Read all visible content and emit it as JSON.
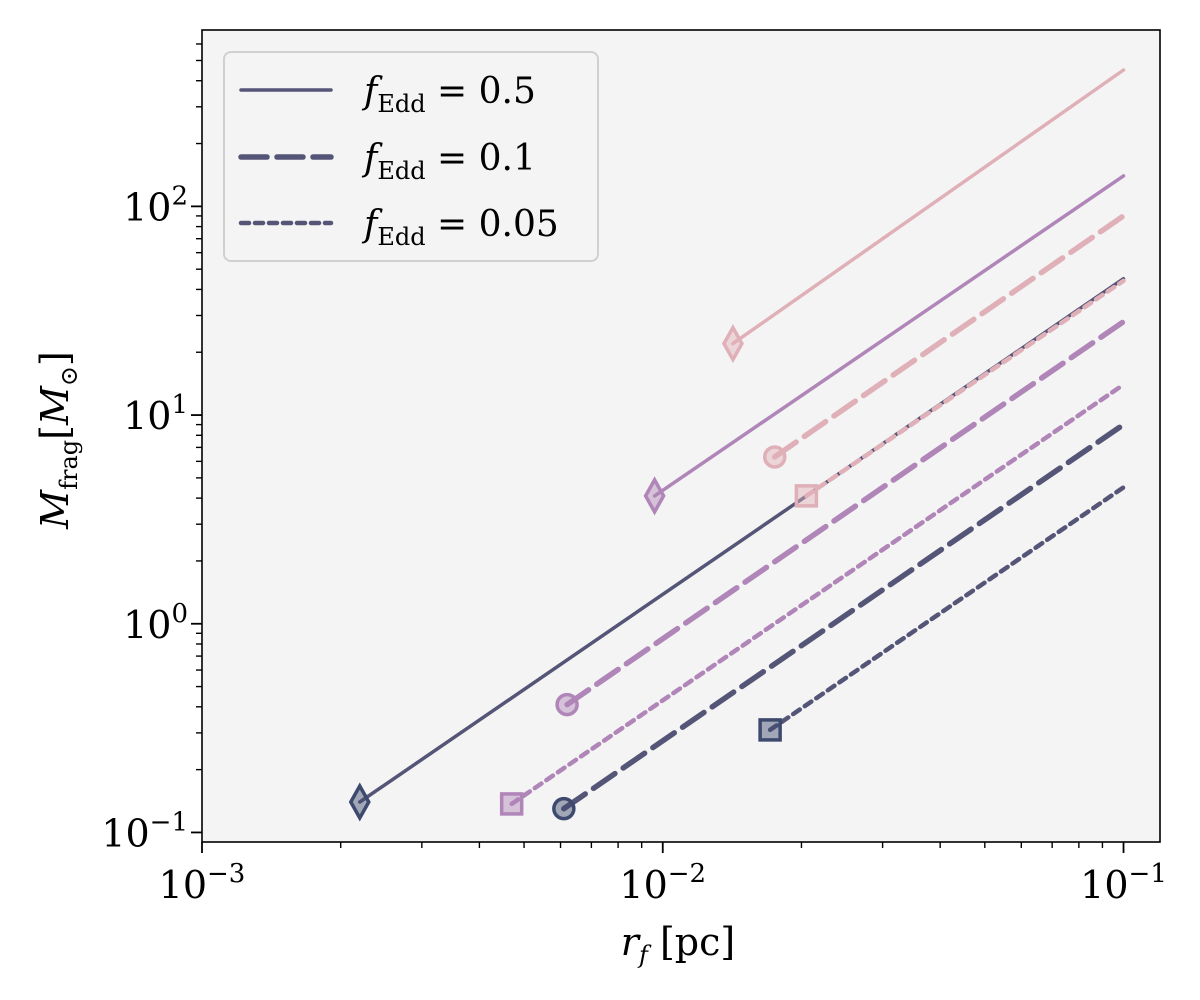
{
  "chart_data": {
    "type": "line",
    "xscale": "log",
    "yscale": "log",
    "xlim": [
      0.001,
      0.12
    ],
    "ylim": [
      0.09,
      700
    ],
    "xlabel": "r_f [pc]",
    "ylabel": "M_frag [M_⊙]",
    "xticks": [
      {
        "value": 0.001,
        "base": "10",
        "exp": "−3"
      },
      {
        "value": 0.01,
        "base": "10",
        "exp": "−2"
      },
      {
        "value": 0.1,
        "base": "10",
        "exp": "−1"
      }
    ],
    "yticks": [
      {
        "value": 0.1,
        "base": "10",
        "exp": "−1"
      },
      {
        "value": 1,
        "base": "10",
        "exp": "0"
      },
      {
        "value": 10,
        "base": "10",
        "exp": "1"
      },
      {
        "value": 100,
        "base": "10",
        "exp": "2"
      }
    ],
    "colors": {
      "dark": "#555577",
      "purple": "#b085b8",
      "pink": "#e0b0b8",
      "background": "#f4f4f4",
      "marker_dark": "#3d4a6e"
    },
    "legend": [
      {
        "label": "f_Edd = 0.5",
        "prefix": "f",
        "sub": "Edd",
        "value": "= 0.5",
        "style": "solid"
      },
      {
        "label": "f_Edd = 0.1",
        "prefix": "f",
        "sub": "Edd",
        "value": "= 0.1",
        "style": "dashed"
      },
      {
        "label": "f_Edd = 0.05",
        "prefix": "f",
        "sub": "Edd",
        "value": "= 0.05",
        "style": "dotted"
      }
    ],
    "series": [
      {
        "name": "pink-solid",
        "color": "pink",
        "style": "solid",
        "x": [
          0.0142,
          0.1
        ],
        "y": [
          22,
          450
        ],
        "marker": "diamond"
      },
      {
        "name": "purple-solid",
        "color": "purple",
        "style": "solid",
        "x": [
          0.0096,
          0.1
        ],
        "y": [
          4.1,
          140
        ],
        "marker": "diamond"
      },
      {
        "name": "dark-solid",
        "color": "dark",
        "style": "solid",
        "x": [
          0.0022,
          0.1
        ],
        "y": [
          0.14,
          45
        ],
        "marker": "diamond"
      },
      {
        "name": "pink-dashed",
        "color": "pink",
        "style": "dashed",
        "x": [
          0.0175,
          0.1
        ],
        "y": [
          6.3,
          90
        ],
        "marker": "circle"
      },
      {
        "name": "purple-dashed",
        "color": "purple",
        "style": "dashed",
        "x": [
          0.0062,
          0.1
        ],
        "y": [
          0.41,
          28
        ],
        "marker": "circle"
      },
      {
        "name": "dark-dashed",
        "color": "dark",
        "style": "dashed",
        "x": [
          0.0061,
          0.1
        ],
        "y": [
          0.13,
          9
        ],
        "marker": "circle"
      },
      {
        "name": "pink-dotted",
        "color": "pink",
        "style": "dotted",
        "x": [
          0.0205,
          0.1
        ],
        "y": [
          4.1,
          44
        ],
        "marker": "square"
      },
      {
        "name": "purple-dotted",
        "color": "purple",
        "style": "dotted",
        "x": [
          0.0047,
          0.1
        ],
        "y": [
          0.137,
          14
        ],
        "marker": "square"
      },
      {
        "name": "dark-dotted",
        "color": "dark",
        "style": "dotted",
        "x": [
          0.0171,
          0.1
        ],
        "y": [
          0.31,
          4.5
        ],
        "marker": "square"
      }
    ]
  }
}
